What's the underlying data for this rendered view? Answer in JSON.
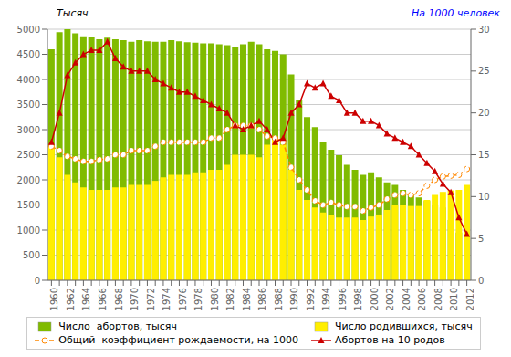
{
  "chart_data": {
    "type": "bar",
    "y_label": "Тысяч",
    "y2_label": "На 1000 человек",
    "categories": [
      "1960",
      null,
      "1962",
      null,
      "1964",
      null,
      "1966",
      null,
      "1968",
      null,
      "1970",
      null,
      "1972",
      null,
      "1974",
      null,
      "1976",
      null,
      "1978",
      null,
      "1980",
      null,
      "1982",
      null,
      "1984",
      null,
      "1986",
      null,
      "1988",
      null,
      "1990",
      null,
      "1992",
      null,
      "1994",
      null,
      "1996",
      null,
      "1998",
      null,
      "2000",
      null,
      "2002",
      null,
      "2004",
      null,
      "2006",
      null,
      "2008",
      null,
      "2010",
      null,
      "2012"
    ],
    "series": [
      {
        "name": "Число  абортов, тысяч",
        "type": "bar",
        "color": "#80bb00",
        "values": [
          4600,
          4940,
          5000,
          4920,
          4860,
          4850,
          4800,
          4830,
          4800,
          4780,
          4750,
          4780,
          4760,
          4750,
          4750,
          4780,
          4760,
          4740,
          4730,
          4720,
          4720,
          4700,
          4680,
          4650,
          4700,
          4750,
          4700,
          4600,
          4570,
          4500,
          4100,
          3600,
          3250,
          3050,
          2760,
          2600,
          2490,
          2300,
          2200,
          2100,
          2150,
          2050,
          1950,
          1900,
          1800,
          1700,
          1650,
          1580,
          1500,
          1450,
          1200,
          950,
          830
        ]
      },
      {
        "name": "Число родившихся, тысяч",
        "type": "bar",
        "color": "#ffee00",
        "values": [
          2660,
          2450,
          2100,
          1950,
          1850,
          1800,
          1800,
          1800,
          1850,
          1850,
          1900,
          1900,
          1900,
          1980,
          2050,
          2100,
          2100,
          2100,
          2150,
          2150,
          2200,
          2200,
          2300,
          2500,
          2500,
          2500,
          2450,
          2700,
          2800,
          2700,
          2200,
          1800,
          1600,
          1450,
          1350,
          1300,
          1250,
          1250,
          1250,
          1200,
          1270,
          1310,
          1400,
          1500,
          1500,
          1480,
          1480,
          1600,
          1700,
          1760,
          1790,
          1800,
          1900
        ]
      },
      {
        "name": "Общий  коэффициент рождаемости, на 1000",
        "type": "line",
        "axis": "y2",
        "color": "#ff8800",
        "marker": "circle",
        "line_style": "dashed",
        "values": [
          16.0,
          15.5,
          14.8,
          14.5,
          14.2,
          14.2,
          14.4,
          14.5,
          15.0,
          15.0,
          15.5,
          15.5,
          15.5,
          16.0,
          16.5,
          16.5,
          16.5,
          16.5,
          16.5,
          16.5,
          17.0,
          17.0,
          18.0,
          18.5,
          18.5,
          18.5,
          18.0,
          17.2,
          17.0,
          16.5,
          13.5,
          12.0,
          10.8,
          9.5,
          9.0,
          9.3,
          9.0,
          8.8,
          8.8,
          8.3,
          8.7,
          9.0,
          9.7,
          10.2,
          10.4,
          10.2,
          10.4,
          11.3,
          12.0,
          12.4,
          12.5,
          12.6,
          13.3
        ]
      },
      {
        "name": "Абортов на 10 родов",
        "type": "line",
        "axis": "y2",
        "color": "#cc0000",
        "marker": "triangle",
        "line_style": "solid",
        "values": [
          16.5,
          20.0,
          24.5,
          26.0,
          27.0,
          27.5,
          27.5,
          28.5,
          26.5,
          25.5,
          25.0,
          25.0,
          25.0,
          24.0,
          23.5,
          23.0,
          22.5,
          22.5,
          22.0,
          21.5,
          21.0,
          20.5,
          20.0,
          18.5,
          18.0,
          18.5,
          19.0,
          18.0,
          16.5,
          17.0,
          20.0,
          21.0,
          23.5,
          23.0,
          23.5,
          22.0,
          21.5,
          20.0,
          20.0,
          19.0,
          19.0,
          18.5,
          17.5,
          17.0,
          16.5,
          16.0,
          15.0,
          14.0,
          13.0,
          11.5,
          10.5,
          7.5,
          5.5
        ]
      }
    ],
    "ylim": [
      0,
      5000
    ],
    "yticks": [
      0,
      500,
      1000,
      1500,
      2000,
      2500,
      3000,
      3500,
      4000,
      4500,
      5000
    ],
    "y2lim": [
      0,
      30
    ],
    "y2ticks": [
      0,
      5,
      10,
      15,
      20,
      25,
      30
    ],
    "grid": true,
    "legend": "bottom"
  }
}
